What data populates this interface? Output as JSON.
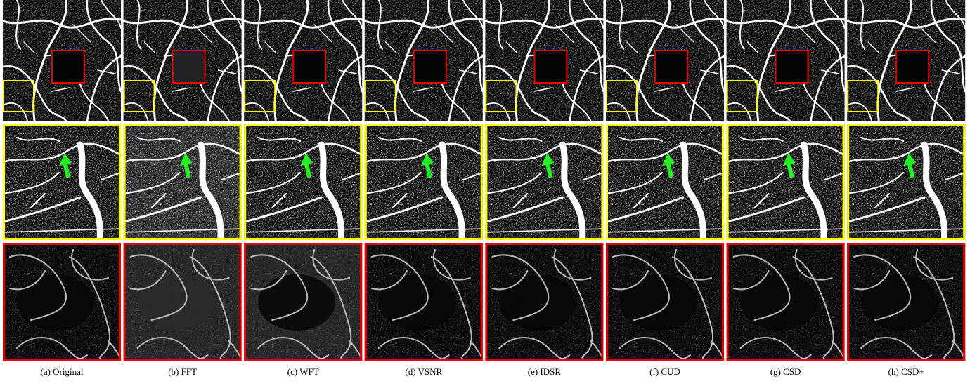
{
  "figure": {
    "panels": [
      {
        "caption": "(a) Original"
      },
      {
        "caption": "(b) FFT"
      },
      {
        "caption": "(c) WFT"
      },
      {
        "caption": "(d) VSNR"
      },
      {
        "caption": "(e) IDSR"
      },
      {
        "caption": "(f) CUD"
      },
      {
        "caption": "(g) CSD"
      },
      {
        "caption": "(h) CSD+"
      }
    ]
  }
}
